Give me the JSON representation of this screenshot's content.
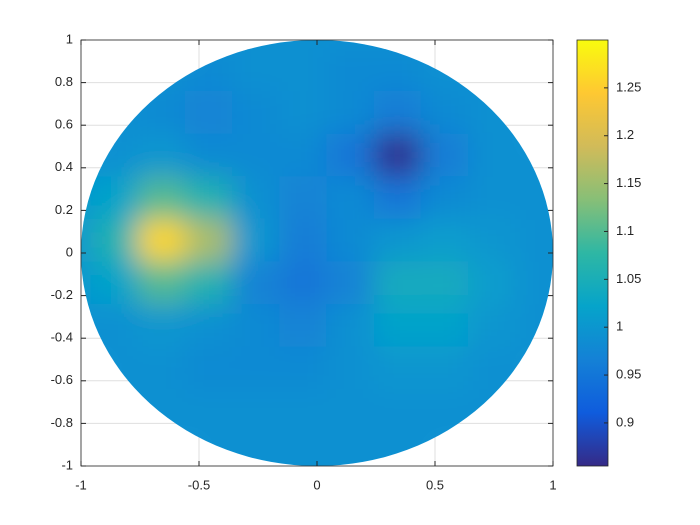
{
  "chart_data": {
    "type": "heatmap",
    "x": [
      -1,
      -0.8,
      -0.6,
      -0.4,
      -0.2,
      0,
      0.2,
      0.4,
      0.6,
      0.8,
      1
    ],
    "y": [
      1,
      0.8,
      0.6,
      0.4,
      0.2,
      0,
      -0.2,
      -0.4,
      -0.6,
      -0.8,
      -1
    ],
    "z": [
      [
        null,
        null,
        null,
        0.99,
        0.99,
        0.99,
        0.99,
        0.99,
        null,
        null,
        null
      ],
      [
        null,
        0.99,
        0.99,
        0.98,
        0.99,
        0.99,
        0.98,
        0.98,
        0.99,
        0.99,
        null
      ],
      [
        null,
        0.99,
        0.98,
        0.97,
        0.98,
        0.99,
        0.98,
        0.96,
        0.98,
        0.99,
        null
      ],
      [
        0.99,
        0.99,
        1.0,
        0.98,
        0.98,
        0.98,
        0.95,
        0.86,
        0.96,
        0.99,
        0.99
      ],
      [
        1.0,
        1.02,
        1.1,
        1.06,
        0.99,
        0.97,
        0.98,
        0.95,
        0.98,
        0.99,
        0.99
      ],
      [
        1.0,
        1.06,
        1.26,
        1.16,
        1.0,
        0.96,
        0.98,
        1.0,
        1.01,
        1.0,
        0.99
      ],
      [
        1.0,
        1.02,
        1.1,
        1.06,
        0.97,
        0.95,
        0.97,
        1.04,
        1.04,
        1.01,
        0.99
      ],
      [
        0.99,
        0.99,
        1.0,
        0.99,
        0.98,
        0.97,
        0.99,
        1.02,
        1.02,
        1.0,
        0.99
      ],
      [
        null,
        0.99,
        0.99,
        0.98,
        0.98,
        0.98,
        0.99,
        1.0,
        1.0,
        0.99,
        null
      ],
      [
        null,
        0.99,
        0.99,
        0.99,
        0.99,
        0.99,
        0.99,
        0.99,
        0.99,
        0.99,
        null
      ],
      [
        null,
        null,
        null,
        0.99,
        0.99,
        0.99,
        0.99,
        0.99,
        null,
        null,
        null
      ]
    ],
    "xlim": [
      -1,
      1
    ],
    "ylim": [
      -1,
      1
    ],
    "xticks": [
      -1,
      -0.5,
      0,
      0.5,
      1
    ],
    "yticks": [
      -1,
      -0.8,
      -0.6,
      -0.4,
      -0.2,
      0,
      0.2,
      0.4,
      0.6,
      0.8,
      1
    ],
    "clim": [
      0.855,
      1.3
    ],
    "cticks": [
      0.9,
      0.95,
      1,
      1.05,
      1.1,
      1.15,
      1.2,
      1.25
    ],
    "colormap": [
      "#352a87",
      "#0f5cdd",
      "#1481d6",
      "#06a4ca",
      "#2eb7a4",
      "#87bf77",
      "#d1bb59",
      "#fec832",
      "#f9fb0e"
    ],
    "grid": true
  }
}
